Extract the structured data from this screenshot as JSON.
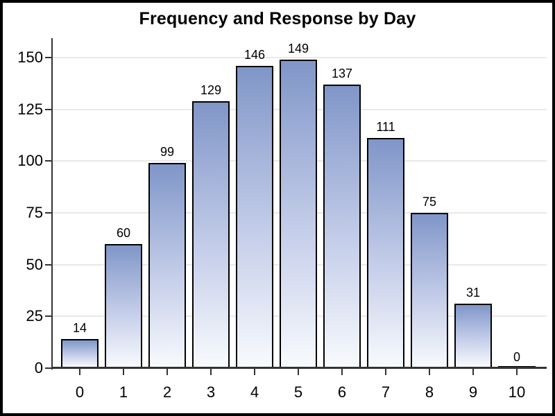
{
  "chart_data": {
    "type": "bar",
    "title": "Frequency and Response by Day",
    "categories": [
      "0",
      "1",
      "2",
      "3",
      "4",
      "5",
      "6",
      "7",
      "8",
      "9",
      "10"
    ],
    "values": [
      14,
      60,
      99,
      129,
      146,
      149,
      137,
      111,
      75,
      31,
      0
    ],
    "bar_value_labels": [
      "14",
      "60",
      "99",
      "129",
      "146",
      "149",
      "137",
      "111",
      "75",
      "31",
      "0"
    ],
    "xlabel": "",
    "ylabel": "",
    "ylim": [
      0,
      160
    ],
    "y_ticks": [
      0,
      25,
      50,
      75,
      100,
      125,
      150
    ],
    "grid": "horizontal",
    "legend": "none",
    "colors": {
      "bar_gradient_top": "#8096c8",
      "bar_gradient_mid": "#c4cde9",
      "bar_gradient_bottom": "#f8fafd",
      "bar_border": "#000000",
      "gridline": "#e9e9e9",
      "axis_line": "#333333",
      "text": "#000000",
      "background": "#ffffff",
      "frame_border": "#000000"
    }
  }
}
